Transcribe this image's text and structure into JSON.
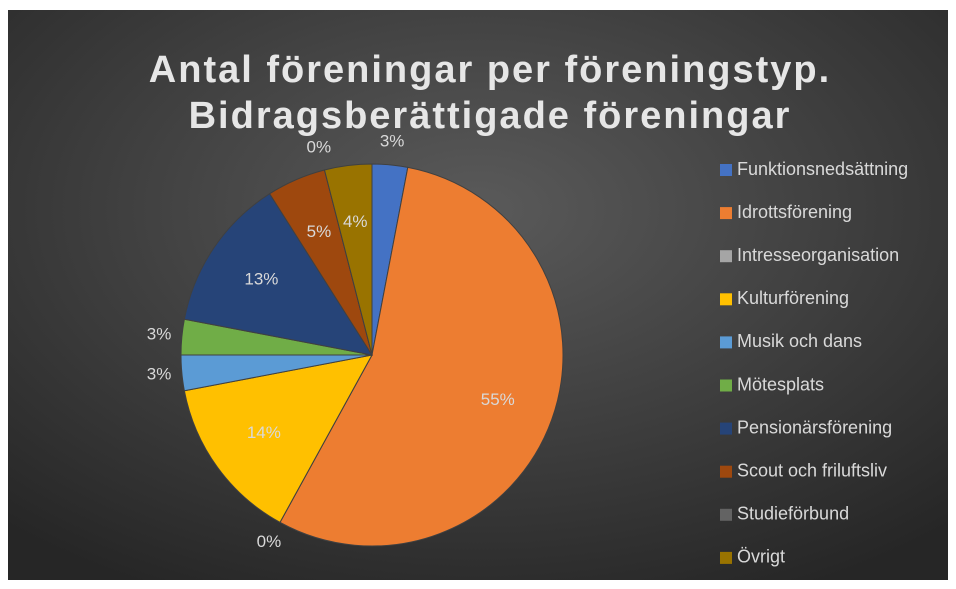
{
  "chart_data": {
    "type": "pie",
    "title": [
      "Antal föreningar per föreningstyp.",
      "Bidragsberättigade föreningar"
    ],
    "categories": [
      "Funktionsnedsättning",
      "Idrottsförening",
      "Intresseorganisation",
      "Kulturförening",
      "Musik och dans",
      "Mötesplats",
      "Pensionärsförening",
      "Scout och friluftsliv",
      "Studieförbund",
      "Övrigt"
    ],
    "values": [
      3,
      55,
      0,
      14,
      3,
      3,
      13,
      5,
      0,
      4
    ],
    "value_labels": [
      "3%",
      "55%",
      "0%",
      "14%",
      "3%",
      "3%",
      "13%",
      "5%",
      "0%",
      "4%"
    ],
    "colors": [
      "#4472c4",
      "#ed7d31",
      "#a5a5a5",
      "#ffc000",
      "#5b9bd5",
      "#70ad47",
      "#264478",
      "#9e480e",
      "#636363",
      "#997300"
    ],
    "legend": "right"
  }
}
